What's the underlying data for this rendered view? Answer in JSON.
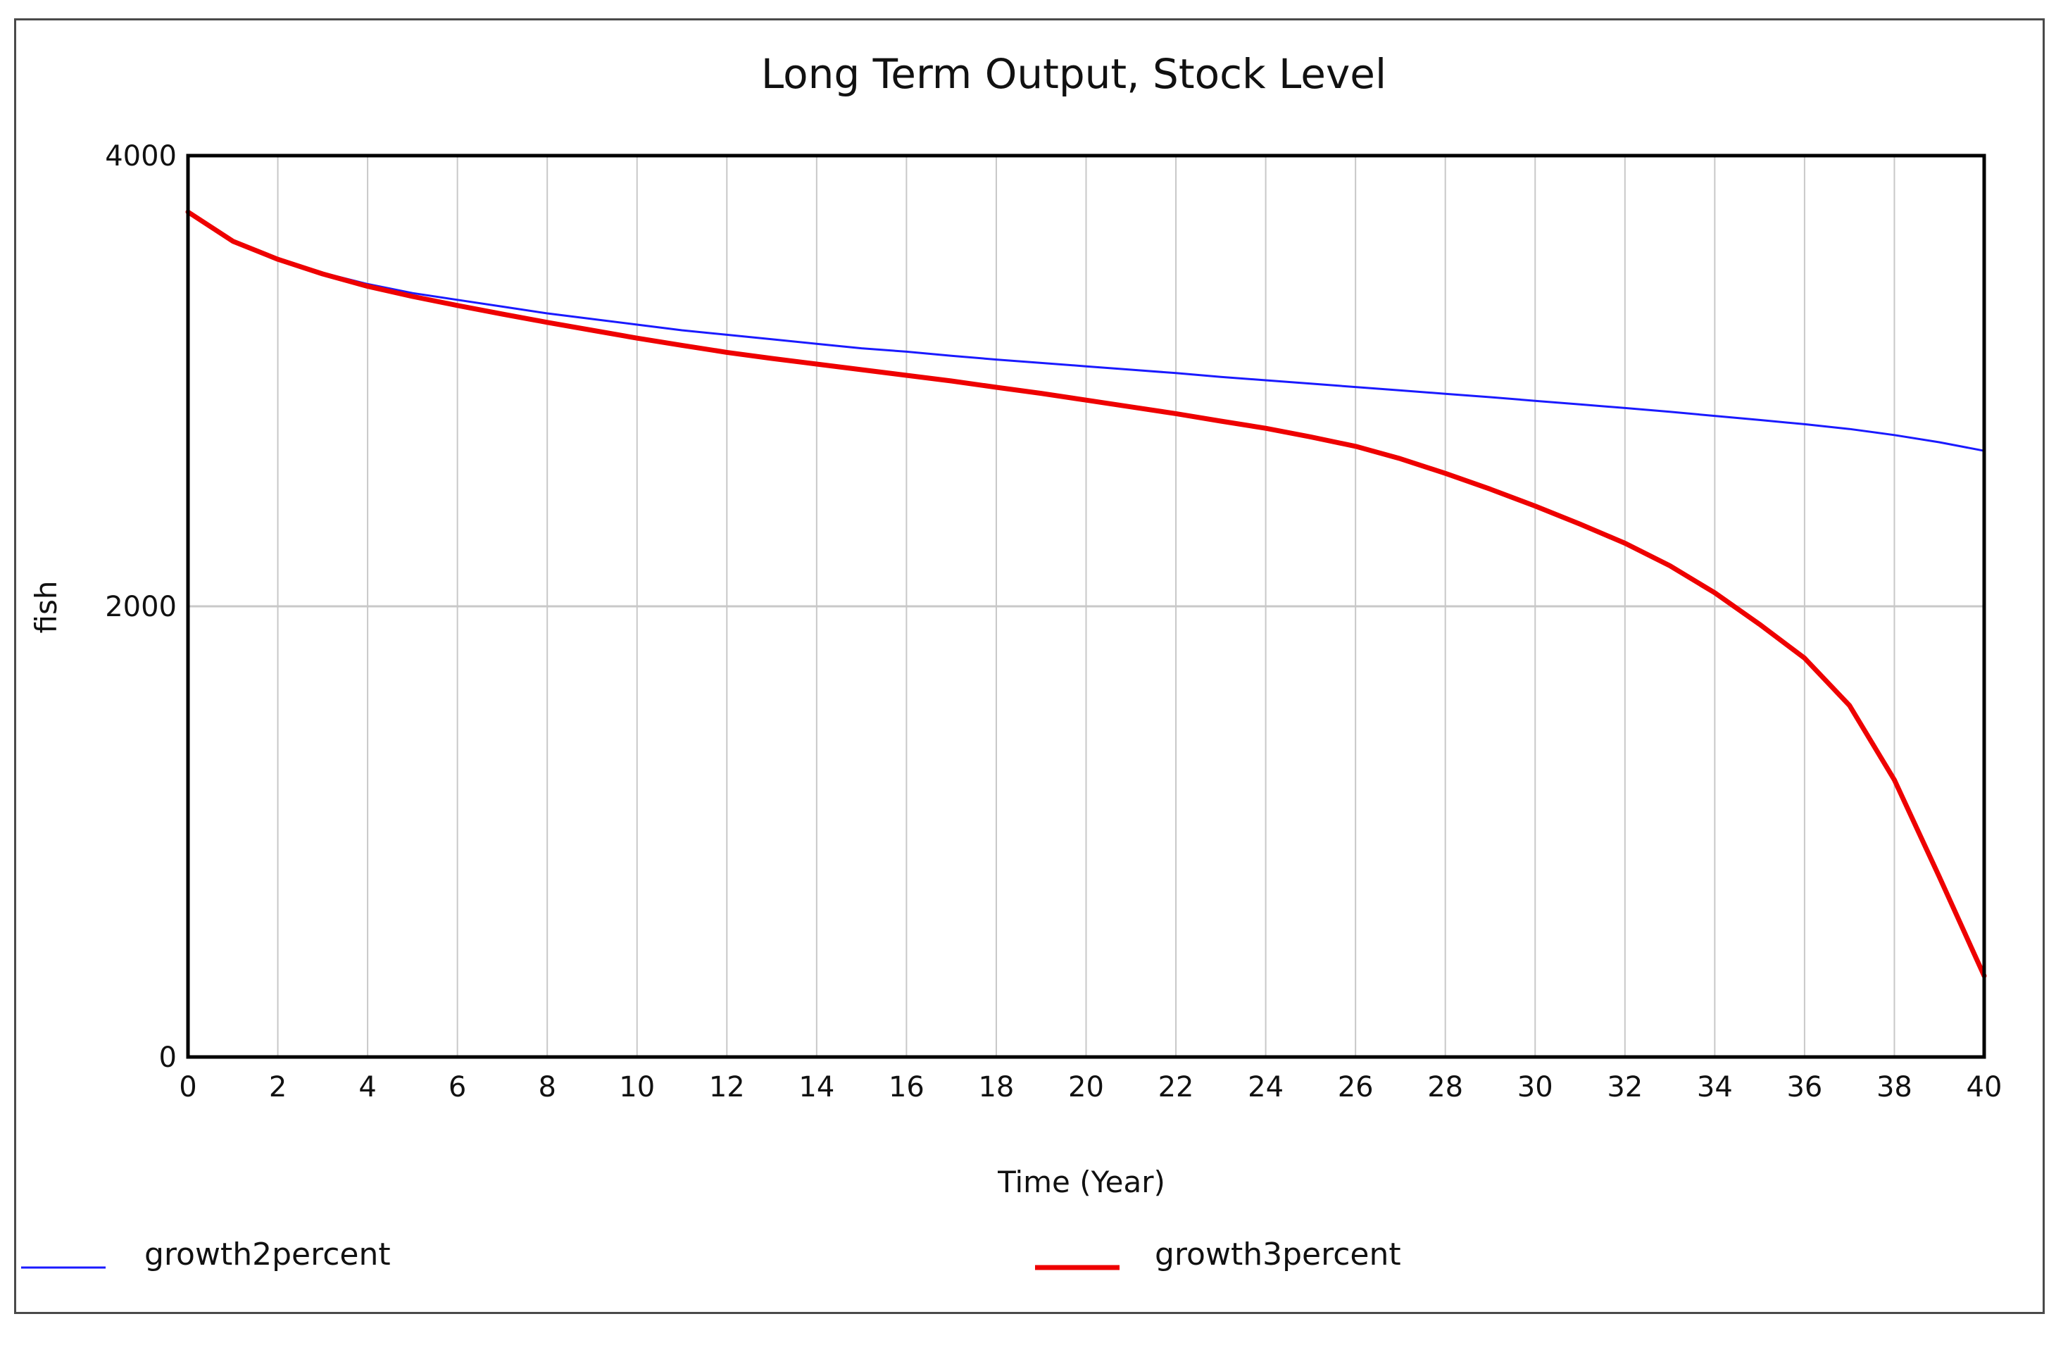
{
  "chart_data": {
    "type": "line",
    "title": "Long Term Output, Stock Level",
    "xlabel": "Time (Year)",
    "ylabel": "fish",
    "xlim": [
      0,
      40
    ],
    "ylim": [
      0,
      4000
    ],
    "x_ticks": [
      0,
      2,
      4,
      6,
      8,
      10,
      12,
      14,
      16,
      18,
      20,
      22,
      24,
      26,
      28,
      30,
      32,
      34,
      36,
      38,
      40
    ],
    "y_ticks": [
      0,
      2000,
      4000
    ],
    "grid": true,
    "legend_position": "bottom",
    "x": [
      0,
      1,
      2,
      3,
      4,
      5,
      6,
      7,
      8,
      9,
      10,
      11,
      12,
      13,
      14,
      15,
      16,
      17,
      18,
      19,
      20,
      21,
      22,
      23,
      24,
      25,
      26,
      27,
      28,
      29,
      30,
      31,
      32,
      33,
      34,
      35,
      36,
      37,
      38,
      39,
      40
    ],
    "series": [
      {
        "name": "growth2percent",
        "color": "#1a1aff",
        "values": [
          3750,
          3620,
          3540,
          3480,
          3430,
          3390,
          3360,
          3330,
          3300,
          3275,
          3250,
          3225,
          3205,
          3185,
          3165,
          3145,
          3130,
          3112,
          3095,
          3080,
          3065,
          3050,
          3035,
          3018,
          3003,
          2988,
          2973,
          2958,
          2943,
          2928,
          2912,
          2896,
          2880,
          2863,
          2845,
          2827,
          2808,
          2787,
          2760,
          2728,
          2690
        ]
      },
      {
        "name": "growth3percent",
        "color": "#ee0000",
        "values": [
          3750,
          3620,
          3540,
          3475,
          3420,
          3375,
          3335,
          3297,
          3260,
          3225,
          3190,
          3158,
          3127,
          3100,
          3075,
          3050,
          3025,
          3000,
          2972,
          2945,
          2915,
          2885,
          2855,
          2822,
          2790,
          2752,
          2710,
          2655,
          2590,
          2520,
          2445,
          2365,
          2280,
          2180,
          2060,
          1920,
          1770,
          1560,
          1230,
          800,
          360
        ]
      }
    ]
  }
}
